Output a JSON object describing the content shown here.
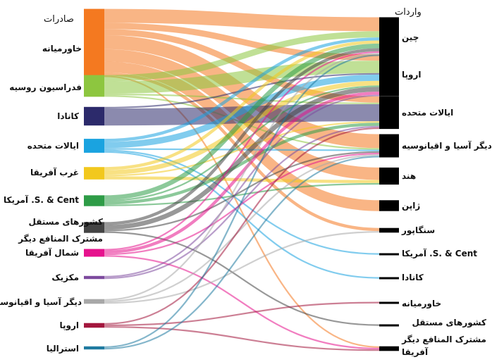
{
  "headers": {
    "exports": "صادرات",
    "imports": "واردات"
  },
  "sources": [
    {
      "id": "s_me",
      "label": "خاورمیانه",
      "color": "#f47920"
    },
    {
      "id": "s_ru",
      "label": "فدراسیون روسیه",
      "color": "#8dc63f"
    },
    {
      "id": "s_ca",
      "label": "کانادا",
      "color": "#2c2a6b"
    },
    {
      "id": "s_us",
      "label": "ایالات متحده",
      "color": "#1aa3e0"
    },
    {
      "id": "s_waf",
      "label": "غرب آفریقا",
      "color": "#f2c81d"
    },
    {
      "id": "s_sca",
      "label": "S. & Cent. آمریکا",
      "color": "#2e9c47"
    },
    {
      "id": "s_cis",
      "label": "کشورهای مستقل مشترک المنافع دیگر",
      "color": "#444444"
    },
    {
      "id": "s_naf",
      "label": "شمال آفریقا",
      "color": "#e6128d"
    },
    {
      "id": "s_mx",
      "label": "مکزیک",
      "color": "#7d4a9e"
    },
    {
      "id": "s_ap",
      "label": "دیگر آسیا و اقیانوسیه",
      "color": "#a8a8a8"
    },
    {
      "id": "s_eu",
      "label": "اروپا",
      "color": "#a3163d"
    },
    {
      "id": "s_au",
      "label": "استرالیا",
      "color": "#1f7aa0"
    }
  ],
  "targets": [
    {
      "id": "t_cn",
      "label": "چین"
    },
    {
      "id": "t_eu",
      "label": "اروپا"
    },
    {
      "id": "t_us",
      "label": "ایالات متحده"
    },
    {
      "id": "t_ap",
      "label": "دیگر آسیا و اقیانوسیه"
    },
    {
      "id": "t_in",
      "label": "هند"
    },
    {
      "id": "t_jp",
      "label": "ژاپن"
    },
    {
      "id": "t_sg",
      "label": "سنگاپور"
    },
    {
      "id": "t_sca",
      "label": "S. & Cent. آمریکا"
    },
    {
      "id": "t_ca",
      "label": "کانادا"
    },
    {
      "id": "t_me",
      "label": "خاورمیانه"
    },
    {
      "id": "t_cis",
      "label": "کشورهای مستقل مشترک المنافع دیگر"
    },
    {
      "id": "t_af",
      "label": "آفریقا"
    }
  ],
  "flows": [
    {
      "source": "s_me",
      "target": "t_cn",
      "value": 9
    },
    {
      "source": "s_me",
      "target": "t_eu",
      "value": 4
    },
    {
      "source": "s_me",
      "target": "t_us",
      "value": 4
    },
    {
      "source": "s_me",
      "target": "t_ap",
      "value": 9
    },
    {
      "source": "s_me",
      "target": "t_in",
      "value": 8
    },
    {
      "source": "s_me",
      "target": "t_jp",
      "value": 7
    },
    {
      "source": "s_me",
      "target": "t_sg",
      "value": 2
    },
    {
      "source": "s_me",
      "target": "t_af",
      "value": 1
    },
    {
      "source": "s_ru",
      "target": "t_eu",
      "value": 8
    },
    {
      "source": "s_ru",
      "target": "t_cn",
      "value": 4
    },
    {
      "source": "s_ru",
      "target": "t_ap",
      "value": 1
    },
    {
      "source": "s_ru",
      "target": "t_us",
      "value": 1
    },
    {
      "source": "s_ca",
      "target": "t_us",
      "value": 11
    },
    {
      "source": "s_ca",
      "target": "t_eu",
      "value": 1
    },
    {
      "source": "s_us",
      "target": "t_eu",
      "value": 4
    },
    {
      "source": "s_us",
      "target": "t_cn",
      "value": 2
    },
    {
      "source": "s_us",
      "target": "t_sca",
      "value": 1
    },
    {
      "source": "s_us",
      "target": "t_ca",
      "value": 1
    },
    {
      "source": "s_us",
      "target": "t_ap",
      "value": 1
    },
    {
      "source": "s_waf",
      "target": "t_eu",
      "value": 3
    },
    {
      "source": "s_waf",
      "target": "t_in",
      "value": 2
    },
    {
      "source": "s_waf",
      "target": "t_cn",
      "value": 2
    },
    {
      "source": "s_waf",
      "target": "t_us",
      "value": 1
    },
    {
      "source": "s_sca",
      "target": "t_cn",
      "value": 3
    },
    {
      "source": "s_sca",
      "target": "t_us",
      "value": 2
    },
    {
      "source": "s_sca",
      "target": "t_eu",
      "value": 1
    },
    {
      "source": "s_sca",
      "target": "t_in",
      "value": 1
    },
    {
      "source": "s_cis",
      "target": "t_eu",
      "value": 3
    },
    {
      "source": "s_cis",
      "target": "t_cn",
      "value": 2
    },
    {
      "source": "s_cis",
      "target": "t_cis",
      "value": 1
    },
    {
      "source": "s_cis",
      "target": "t_ap",
      "value": 1
    },
    {
      "source": "s_naf",
      "target": "t_eu",
      "value": 2
    },
    {
      "source": "s_naf",
      "target": "t_cn",
      "value": 1
    },
    {
      "source": "s_naf",
      "target": "t_af",
      "value": 1
    },
    {
      "source": "s_naf",
      "target": "t_ap",
      "value": 1
    },
    {
      "source": "s_mx",
      "target": "t_us",
      "value": 1
    },
    {
      "source": "s_mx",
      "target": "t_eu",
      "value": 1
    },
    {
      "source": "s_ap",
      "target": "t_ap",
      "value": 1
    },
    {
      "source": "s_ap",
      "target": "t_cn",
      "value": 1
    },
    {
      "source": "s_ap",
      "target": "t_sg",
      "value": 1
    },
    {
      "source": "s_eu",
      "target": "t_us",
      "value": 1
    },
    {
      "source": "s_eu",
      "target": "t_me",
      "value": 1
    },
    {
      "source": "s_eu",
      "target": "t_af",
      "value": 1
    },
    {
      "source": "s_au",
      "target": "t_ap",
      "value": 1
    },
    {
      "source": "s_au",
      "target": "t_cn",
      "value": 1
    }
  ]
}
